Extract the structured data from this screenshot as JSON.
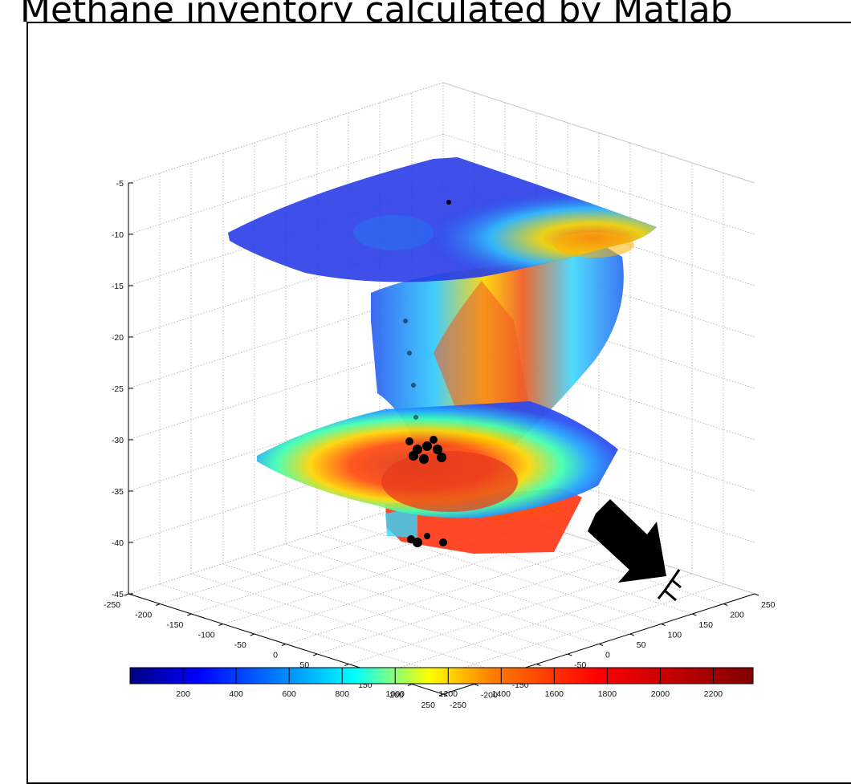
{
  "figure": {
    "title": "Methane inventory calculated by Matlab"
  },
  "chart_data": {
    "type": "heatmap",
    "title": "Methane inventory calculated by Matlab",
    "z_ticks": [
      -5,
      -10,
      -15,
      -20,
      -25,
      -30,
      -35,
      -40,
      -45
    ],
    "zlim": [
      -45,
      -5
    ],
    "x_ticks": [
      -250,
      -200,
      -150,
      -100,
      -50,
      0,
      50,
      100,
      150,
      200,
      250
    ],
    "xlim": [
      -250,
      250
    ],
    "y_ticks": [
      -250,
      -200,
      -150,
      -100,
      -50,
      0,
      50,
      100,
      150,
      200,
      250
    ],
    "ylim": [
      -250,
      250
    ],
    "colorbar_ticks": [
      200,
      400,
      600,
      800,
      1000,
      1200,
      1400,
      1600,
      1800,
      2000,
      2200
    ],
    "colorbar_range": [
      0,
      2350
    ],
    "colormap": [
      "#00007f",
      "#0000ff",
      "#007fff",
      "#00ffff",
      "#7fff7f",
      "#ffff00",
      "#ff7f00",
      "#ff0000",
      "#7f0000"
    ],
    "slices": [
      {
        "z": -10,
        "max_value": 1400
      },
      {
        "z": -32,
        "max_value": 1800
      },
      {
        "z": -39,
        "max_value": 1300
      }
    ],
    "annotation": "E",
    "grid": true
  }
}
